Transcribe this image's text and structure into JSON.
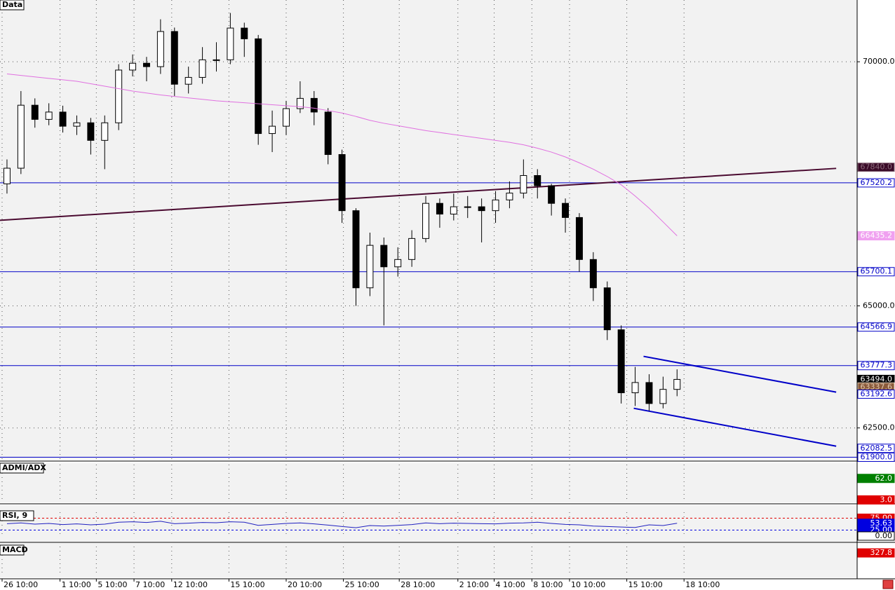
{
  "chart_data": [
    {
      "type": "candlestick",
      "title": "Data",
      "x": [
        0,
        1,
        2,
        3,
        4,
        5,
        6,
        7,
        8,
        9,
        10,
        11,
        12,
        13,
        14,
        15,
        16,
        17,
        18,
        19,
        20,
        21,
        22,
        23,
        24,
        25,
        26,
        27,
        28,
        29,
        30,
        31,
        32,
        33,
        34,
        35,
        36,
        37,
        38,
        39,
        40,
        41,
        42,
        43,
        44,
        45,
        46,
        47,
        48
      ],
      "open": [
        67500,
        67820,
        69110,
        68820,
        68970,
        68680,
        68750,
        68390,
        68750,
        69830,
        69970,
        69900,
        70620,
        69540,
        69680,
        70040,
        70040,
        70690,
        70470,
        68530,
        68680,
        69040,
        69250,
        68970,
        68100,
        66950,
        65370,
        66240,
        65800,
        65950,
        66380,
        67100,
        66880,
        67030,
        67030,
        66950,
        67170,
        67310,
        67670,
        67460,
        67100,
        66810,
        65950,
        65370,
        64510,
        63220,
        63430,
        63000,
        63290
      ],
      "high": [
        68000,
        69400,
        69250,
        69150,
        69100,
        68900,
        68850,
        68900,
        69950,
        70150,
        70100,
        70870,
        70700,
        69900,
        70300,
        70400,
        71000,
        70800,
        70550,
        69000,
        69200,
        69600,
        69400,
        69050,
        68200,
        67000,
        66500,
        66400,
        66200,
        66550,
        67250,
        67200,
        67300,
        67250,
        67200,
        67350,
        67550,
        68000,
        67800,
        67500,
        67200,
        66900,
        66100,
        65500,
        64600,
        63750,
        63600,
        63550,
        63700
      ],
      "low": [
        67300,
        67700,
        68650,
        68700,
        68550,
        68500,
        68100,
        67800,
        68600,
        69700,
        69600,
        69750,
        69300,
        69350,
        69550,
        69800,
        69950,
        70100,
        68300,
        68150,
        68500,
        68950,
        68700,
        67900,
        66700,
        65000,
        65200,
        64600,
        65600,
        65800,
        66300,
        66600,
        66750,
        66800,
        66300,
        66700,
        67000,
        67200,
        67200,
        66850,
        66500,
        65700,
        65100,
        64300,
        63000,
        62950,
        62850,
        62900,
        63150
      ],
      "close": [
        67820,
        69110,
        68820,
        68970,
        68680,
        68750,
        68390,
        68750,
        69830,
        69970,
        69900,
        70620,
        69540,
        69680,
        70040,
        70040,
        70690,
        70470,
        68530,
        68680,
        69040,
        69250,
        68970,
        68100,
        66950,
        65370,
        66240,
        65800,
        65950,
        66380,
        67100,
        66880,
        67030,
        67030,
        66950,
        67170,
        67310,
        67670,
        67460,
        67100,
        66810,
        65950,
        65370,
        64510,
        63220,
        63430,
        63000,
        63290,
        63494
      ],
      "series": [
        {
          "color": "#e070e0",
          "values": [
            69750,
            69720,
            69690,
            69660,
            69630,
            69600,
            69550,
            69500,
            69450,
            69400,
            69360,
            69320,
            69290,
            69260,
            69230,
            69200,
            69180,
            69160,
            69140,
            69120,
            69100,
            69080,
            69050,
            69000,
            68950,
            68880,
            68800,
            68740,
            68690,
            68640,
            68590,
            68550,
            68510,
            68470,
            68430,
            68390,
            68350,
            68300,
            68230,
            68150,
            68050,
            67930,
            67800,
            67650,
            67480,
            67250,
            67000,
            66720,
            66435.2
          ]
        }
      ],
      "levels": [
        67520.2,
        65700.1,
        64566.9,
        63777.3,
        61900.0
      ],
      "level_color": "#0000c8",
      "trendlines": [
        {
          "x": [
            -0.5,
            59.4
          ],
          "y": [
            66753,
            67816
          ],
          "color": "#4a0a30"
        },
        {
          "x": [
            45.6,
            59.4
          ],
          "y": [
            63966,
            63233
          ],
          "color": "#0000c8"
        },
        {
          "x": [
            44.9,
            59.4
          ],
          "y": [
            62902,
            62126
          ],
          "color": "#0000c8"
        }
      ],
      "xlim": [
        -0.5,
        60.9
      ],
      "ylim": [
        61850,
        71265
      ],
      "yticks": [
        {
          "value": 62500,
          "label": "62500.0"
        },
        {
          "value": 65000,
          "label": "65000.0"
        },
        {
          "value": 70000,
          "label": "70000.0"
        }
      ],
      "xticks": [
        {
          "value": -0.35,
          "label": "26 10:00"
        },
        {
          "value": 3.8,
          "label": "1 10:00"
        },
        {
          "value": 6.4,
          "label": "5 10:00"
        },
        {
          "value": 9.1,
          "label": "7 10:00"
        },
        {
          "value": 11.8,
          "label": "12 10:00"
        },
        {
          "value": 15.9,
          "label": "15 10:00"
        },
        {
          "value": 20.0,
          "label": "20 10:00"
        },
        {
          "value": 24.1,
          "label": "25 10:00"
        },
        {
          "value": 28.1,
          "label": "28 10:00"
        },
        {
          "value": 32.3,
          "label": "2 10:00"
        },
        {
          "value": 34.9,
          "label": "4 10:00"
        },
        {
          "value": 37.6,
          "label": "8 10:00"
        },
        {
          "value": 40.3,
          "label": "10 10:00"
        },
        {
          "value": 44.4,
          "label": "15 10:00"
        },
        {
          "value": 48.5,
          "label": "18 10:00"
        }
      ],
      "price_labels": [
        {
          "value": 67840.0,
          "label": "67840.0",
          "bg": "#3a0a28",
          "fg": "#8a6a7a"
        },
        {
          "value": 67520.2,
          "label": "67520.2",
          "bg": "#ffffff",
          "fg": "#0000c8"
        },
        {
          "value": 66435.2,
          "label": "66435.2",
          "bg": "#f0a0f0",
          "fg": "#ffffff"
        },
        {
          "value": 65700.1,
          "label": "65700.1",
          "bg": "#ffffff",
          "fg": "#0000c8"
        },
        {
          "value": 64566.9,
          "label": "64566.9",
          "bg": "#ffffff",
          "fg": "#0000c8"
        },
        {
          "value": 63777.3,
          "label": "63777.3",
          "bg": "#ffffff",
          "fg": "#0000c8"
        },
        {
          "value": 63494.0,
          "label": "63494.0",
          "bg": "#000000",
          "fg": "#ffffff"
        },
        {
          "value": 63337.6,
          "label": "63337.6",
          "bg": "#8a5a3a",
          "fg": "#e0c8b0"
        },
        {
          "value": 63192.6,
          "label": "63192.6",
          "bg": "#ffffff",
          "fg": "#0000c8"
        },
        {
          "value": 62082.5,
          "label": "62082.5",
          "bg": "#ffffff",
          "fg": "#0000c8"
        },
        {
          "value": 61900.0,
          "label": "61900.0",
          "bg": "#ffffff",
          "fg": "#0000c8"
        }
      ]
    },
    {
      "type": "line",
      "title": "ADMI/ADX",
      "ylim": [
        0,
        100
      ],
      "price_labels": [
        {
          "value": 62.0,
          "label": "62.0",
          "bg": "#008000",
          "fg": "#ffffff"
        },
        {
          "value": 3.0,
          "label": "3.0",
          "bg": "#e00000",
          "fg": "#ffffff"
        }
      ]
    },
    {
      "type": "line",
      "title": "RSI, 9",
      "ylim": [
        0,
        100
      ],
      "series": [
        {
          "color": "#2020c0",
          "values": [
            52,
            55,
            50,
            53,
            48,
            51,
            47,
            50,
            58,
            60,
            57,
            62,
            52,
            54,
            57,
            56,
            60,
            58,
            45,
            49,
            53,
            55,
            51,
            46,
            40,
            35,
            44,
            42,
            45,
            48,
            55,
            52,
            54,
            53,
            52,
            51,
            54,
            55,
            58,
            53,
            49,
            47,
            42,
            40,
            38,
            36,
            47,
            44,
            53.63
          ]
        }
      ],
      "levels": [
        75,
        25
      ],
      "price_labels": [
        {
          "value": 75,
          "label": "75.00",
          "bg": "#e00000",
          "fg": "#ffffff"
        },
        {
          "value": 53.63,
          "label": "53.63",
          "bg": "#0000e0",
          "fg": "#ffffff"
        },
        {
          "value": 25,
          "label": "25.00",
          "bg": "#0000e0",
          "fg": "#ffffff"
        },
        {
          "value": 0,
          "label": "0.00",
          "bg": "#ffffff",
          "fg": "#000000"
        }
      ]
    },
    {
      "type": "line",
      "title": "MACD",
      "ylim": [
        -600,
        600
      ],
      "price_labels": [
        {
          "value": 327.8,
          "label": "327.8",
          "bg": "#e00000",
          "fg": "#ffffff"
        }
      ]
    }
  ]
}
